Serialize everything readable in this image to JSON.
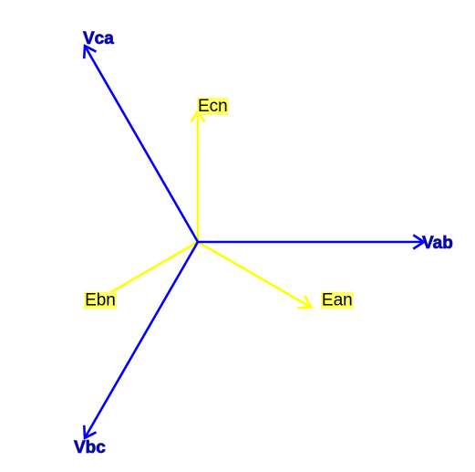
{
  "diagram": {
    "colors": {
      "line_voltage": "#0000ff",
      "phase_voltage": "#ffff00",
      "line_label": "#0a0a9a",
      "phase_label_text": "#000000",
      "phase_label_bg": "#ffff66",
      "background": "#ffffff"
    },
    "line_phasors": [
      {
        "id": "vab",
        "label": "Vab",
        "magnitude": 1.0,
        "angle_deg": 0
      },
      {
        "id": "vbc",
        "label": "Vbc",
        "magnitude": 1.0,
        "angle_deg": -120
      },
      {
        "id": "vca",
        "label": "Vca",
        "magnitude": 1.0,
        "angle_deg": 120
      }
    ],
    "phase_phasors": [
      {
        "id": "ecn",
        "label": "Ecn",
        "magnitude": 0.577,
        "angle_deg": 90
      },
      {
        "id": "ean",
        "label": "Ean",
        "magnitude": 0.577,
        "angle_deg": -30
      },
      {
        "id": "ebn",
        "label": "Ebn",
        "magnitude": 0.577,
        "angle_deg": -150
      }
    ]
  }
}
